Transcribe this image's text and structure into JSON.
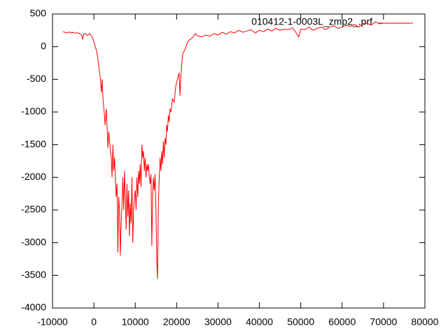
{
  "chart_data": {
    "type": "line",
    "xlim": [
      -10000,
      80000
    ],
    "xticks": [
      -10000,
      0,
      10000,
      20000,
      30000,
      40000,
      50000,
      60000,
      70000,
      80000
    ],
    "ylim": [
      -4000,
      500
    ],
    "yticks": [
      -4000,
      -3500,
      -3000,
      -2500,
      -2000,
      -1500,
      -1000,
      -500,
      0,
      500
    ],
    "legend": "top-right",
    "series": [
      {
        "name": "010412-1-0003L_zmp2_.prf",
        "color": "#ff0000",
        "x": [
          -7500,
          -7000,
          -6500,
          -6000,
          -5500,
          -5000,
          -4500,
          -4000,
          -3500,
          -3000,
          -2700,
          -2500,
          -2000,
          -1500,
          -1000,
          -500,
          0,
          300,
          600,
          900,
          1200,
          1500,
          1800,
          2000,
          2200,
          2500,
          2700,
          3000,
          3200,
          3400,
          3600,
          3800,
          4000,
          4200,
          4400,
          4600,
          4800,
          5000,
          5200,
          5400,
          5600,
          5800,
          6000,
          6200,
          6400,
          6600,
          6800,
          7000,
          7200,
          7400,
          7600,
          7800,
          8000,
          8200,
          8400,
          8600,
          8800,
          9000,
          9200,
          9400,
          9600,
          9800,
          10000,
          10200,
          10400,
          10600,
          10800,
          11000,
          11200,
          11400,
          11600,
          11800,
          12000,
          12200,
          12400,
          12600,
          12800,
          13000,
          13200,
          13400,
          13600,
          13800,
          14000,
          14200,
          14400,
          14600,
          14800,
          15000,
          15200,
          15400,
          15600,
          15800,
          16000,
          16200,
          16400,
          16600,
          16800,
          17000,
          17200,
          17400,
          17600,
          17800,
          18000,
          18200,
          18400,
          18600,
          19000,
          19400,
          19800,
          20200,
          20600,
          20800,
          21000,
          21200,
          21500,
          22000,
          22500,
          23000,
          23500,
          24000,
          24500,
          25000,
          26000,
          27000,
          28000,
          29000,
          30000,
          31000,
          32000,
          33000,
          34000,
          35000,
          36000,
          37000,
          38000,
          39000,
          40000,
          41000,
          42000,
          43000,
          44000,
          45000,
          46000,
          47000,
          48000,
          49000,
          49500,
          50000,
          51000,
          52000,
          53000,
          54000,
          55000,
          56000,
          57000,
          58000,
          59000,
          60000,
          61000,
          62000,
          63000,
          64000,
          65000,
          66000,
          67000,
          68000,
          69000,
          70000,
          71000,
          76500
        ],
        "values": [
          230,
          220,
          215,
          225,
          210,
          220,
          205,
          215,
          200,
          180,
          110,
          190,
          200,
          170,
          200,
          160,
          80,
          0,
          -50,
          -150,
          -300,
          -450,
          -700,
          -500,
          -800,
          -1000,
          -1200,
          -950,
          -1250,
          -1550,
          -1300,
          -1450,
          -1600,
          -1700,
          -2000,
          -1500,
          -1900,
          -1700,
          -2000,
          -2300,
          -2100,
          -3150,
          -2300,
          -2500,
          -3200,
          -2700,
          -2400,
          -2000,
          -2500,
          -1900,
          -2300,
          -2800,
          -2100,
          -2600,
          -2200,
          -2900,
          -2400,
          -2700,
          -2000,
          -3000,
          -2500,
          -2300,
          -2200,
          -2500,
          -2000,
          -2300,
          -1900,
          -2100,
          -1800,
          -2150,
          -1500,
          -1700,
          -1600,
          -1900,
          -1700,
          -2000,
          -1800,
          -1900,
          -1800,
          -2000,
          -2100,
          -1950,
          -3050,
          -2300,
          -2000,
          -2200,
          -1950,
          -2500,
          -3300,
          -3550,
          -2400,
          -2000,
          -1700,
          -1900,
          -1600,
          -1800,
          -1450,
          -1700,
          -1400,
          -1500,
          -1200,
          -1300,
          -1050,
          -1150,
          -950,
          -1000,
          -800,
          -850,
          -600,
          -500,
          -400,
          -750,
          -500,
          -300,
          -100,
          -50,
          50,
          100,
          120,
          150,
          200,
          170,
          150,
          180,
          160,
          200,
          180,
          220,
          190,
          230,
          210,
          250,
          220,
          240,
          260,
          210,
          250,
          230,
          270,
          240,
          280,
          250,
          270,
          260,
          290,
          200,
          150,
          270,
          260,
          300,
          250,
          280,
          300,
          260,
          300,
          320,
          280,
          300,
          330,
          310,
          340,
          300,
          350,
          360,
          330,
          380,
          350,
          360,
          360,
          360
        ]
      }
    ]
  }
}
